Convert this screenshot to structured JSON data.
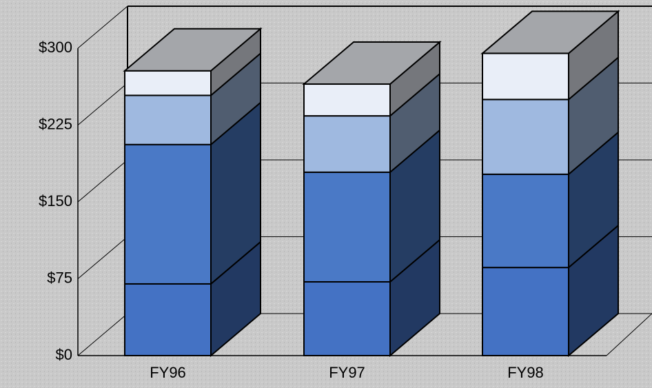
{
  "chart_data": {
    "type": "bar3d_stacked",
    "categories": [
      "FY96",
      "FY97",
      "FY98"
    ],
    "series": [
      {
        "color": "#4472c4",
        "values": [
          70,
          72,
          86
        ]
      },
      {
        "color": "#4a79c6",
        "values": [
          136,
          107,
          91
        ]
      },
      {
        "color": "#9fb9e0",
        "values": [
          48,
          55,
          73
        ]
      },
      {
        "color": "#e9eef8",
        "values": [
          24,
          31,
          45
        ]
      }
    ],
    "ylim": [
      0,
      300
    ],
    "yticks": [
      {
        "value": 0,
        "label": "$0"
      },
      {
        "value": 75,
        "label": "$75"
      },
      {
        "value": 150,
        "label": "$150"
      },
      {
        "value": 225,
        "label": "$225"
      },
      {
        "value": 300,
        "label": "$300"
      }
    ],
    "grid": true
  }
}
